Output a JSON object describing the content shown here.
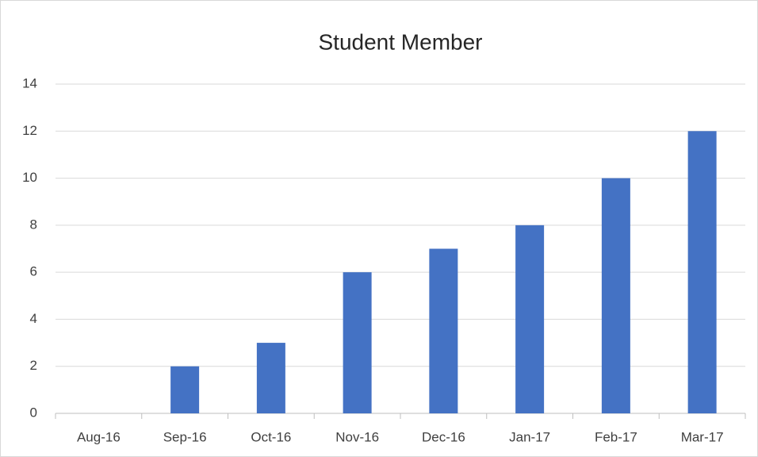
{
  "chart_data": {
    "type": "bar",
    "title": "Student Member",
    "categories": [
      "Aug-16",
      "Sep-16",
      "Oct-16",
      "Nov-16",
      "Dec-16",
      "Jan-17",
      "Feb-17",
      "Mar-17"
    ],
    "values": [
      0,
      2,
      3,
      6,
      7,
      8,
      10,
      12
    ],
    "color": "#4472c4",
    "ylim": [
      0,
      14
    ],
    "yticks": [
      0,
      2,
      4,
      6,
      8,
      10,
      12,
      14
    ],
    "grid": true
  }
}
